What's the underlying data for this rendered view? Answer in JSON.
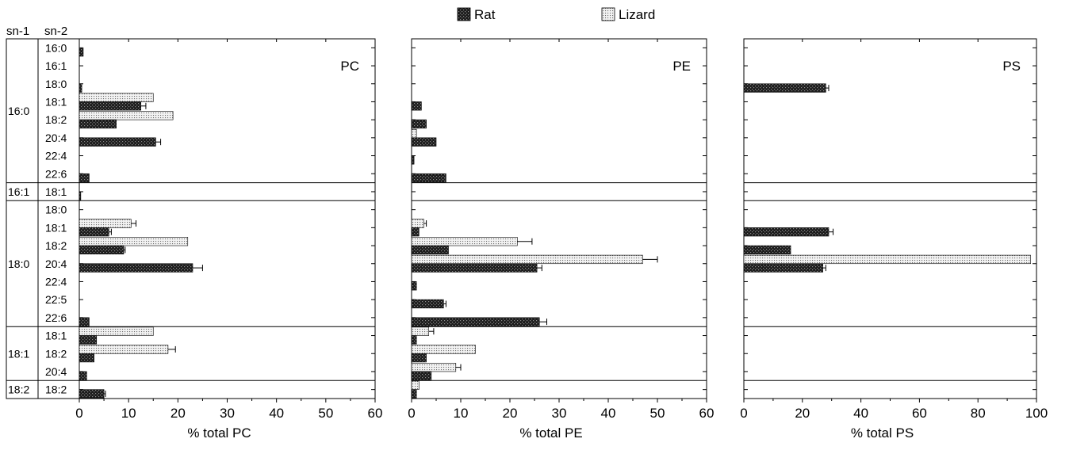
{
  "legend": [
    {
      "name": "Rat",
      "pattern": "dark-dotted"
    },
    {
      "name": "Lizard",
      "pattern": "light-dotted"
    }
  ],
  "row_headers": {
    "sn1": "sn-1",
    "sn2": "sn-2"
  },
  "groups": [
    {
      "sn1": "16:0",
      "sn2": [
        "16:0",
        "16:1",
        "18:0",
        "18:1",
        "18:2",
        "20:4",
        "22:4",
        "22:6"
      ]
    },
    {
      "sn1": "16:1",
      "sn2": [
        "18:1"
      ]
    },
    {
      "sn1": "18:0",
      "sn2": [
        "18:0",
        "18:1",
        "18:2",
        "20:4",
        "22:4",
        "22:5",
        "22:6"
      ]
    },
    {
      "sn1": "18:1",
      "sn2": [
        "18:1",
        "18:2",
        "20:4"
      ]
    },
    {
      "sn1": "18:2",
      "sn2": [
        "18:2"
      ]
    }
  ],
  "chart_data": [
    {
      "type": "bar",
      "title": "PC",
      "xlabel": "% total PC",
      "xlim": [
        0,
        60
      ],
      "ticks": [
        "0",
        "10",
        "20",
        "30",
        "40",
        "50",
        "60"
      ],
      "categories": [
        "16:0/16:0",
        "16:0/16:1",
        "16:0/18:0",
        "16:0/18:1",
        "16:0/18:2",
        "16:0/20:4",
        "16:0/22:4",
        "16:0/22:6",
        "16:1/18:1",
        "18:0/18:0",
        "18:0/18:1",
        "18:0/18:2",
        "18:0/20:4",
        "18:0/22:4",
        "18:0/22:5",
        "18:0/22:6",
        "18:1/18:1",
        "18:1/18:2",
        "18:1/20:4",
        "18:2/18:2"
      ],
      "series": [
        {
          "name": "Lizard",
          "values": [
            0,
            0,
            0,
            15,
            19,
            0,
            0,
            0,
            0,
            0,
            10.5,
            22,
            0,
            0,
            0,
            0,
            15,
            18,
            0,
            0
          ],
          "errors": [
            0,
            0,
            0,
            0,
            0,
            0,
            0,
            0,
            0,
            0,
            1,
            0,
            0,
            0,
            0,
            0,
            0,
            1.5,
            0,
            0
          ]
        },
        {
          "name": "Rat",
          "values": [
            0.8,
            0,
            0.5,
            12.5,
            7.5,
            15.5,
            0,
            2,
            0.3,
            0,
            6,
            9,
            23,
            0,
            0,
            2,
            3.5,
            3,
            1.5,
            5
          ],
          "errors": [
            0,
            0,
            0,
            1,
            0,
            1,
            0,
            0,
            0,
            0,
            0.5,
            0.3,
            2,
            0,
            0,
            0,
            0,
            0,
            0,
            0.3
          ]
        }
      ]
    },
    {
      "type": "bar",
      "title": "PE",
      "xlabel": "% total PE",
      "xlim": [
        0,
        60
      ],
      "ticks": [
        "0",
        "10",
        "20",
        "30",
        "40",
        "50",
        "60"
      ],
      "categories": [
        "16:0/16:0",
        "16:0/16:1",
        "16:0/18:0",
        "16:0/18:1",
        "16:0/18:2",
        "16:0/20:4",
        "16:0/22:4",
        "16:0/22:6",
        "16:1/18:1",
        "18:0/18:0",
        "18:0/18:1",
        "18:0/18:2",
        "18:0/20:4",
        "18:0/22:4",
        "18:0/22:5",
        "18:0/22:6",
        "18:1/18:1",
        "18:1/18:2",
        "18:1/20:4",
        "18:2/18:2"
      ],
      "series": [
        {
          "name": "Lizard",
          "values": [
            0,
            0,
            0,
            0,
            0,
            1,
            0,
            0,
            0,
            0,
            2.5,
            21.5,
            47,
            0,
            0,
            0,
            3.5,
            13,
            9,
            1.5
          ],
          "errors": [
            0,
            0,
            0,
            0,
            0,
            0,
            0,
            0,
            0,
            0,
            0.5,
            3,
            3,
            0,
            0,
            0,
            1,
            0,
            1,
            0
          ]
        },
        {
          "name": "Rat",
          "values": [
            0,
            0,
            0,
            2,
            3,
            5,
            0.5,
            7,
            0,
            0,
            1.5,
            7.5,
            25.5,
            1,
            6.5,
            26,
            1,
            3,
            4,
            1
          ],
          "errors": [
            0,
            0,
            0,
            0,
            0,
            0,
            0,
            0,
            0,
            0,
            0,
            0,
            1,
            0,
            0.5,
            1.5,
            0,
            0,
            0,
            0
          ]
        }
      ]
    },
    {
      "type": "bar",
      "title": "PS",
      "xlabel": "% total PS",
      "xlim": [
        0,
        100
      ],
      "ticks": [
        "0",
        "20",
        "40",
        "60",
        "80",
        "100"
      ],
      "categories": [
        "16:0/16:0",
        "16:0/16:1",
        "16:0/18:0",
        "16:0/18:1",
        "16:0/18:2",
        "16:0/20:4",
        "16:0/22:4",
        "16:0/22:6",
        "16:1/18:1",
        "18:0/18:0",
        "18:0/18:1",
        "18:0/18:2",
        "18:0/20:4",
        "18:0/22:4",
        "18:0/22:5",
        "18:0/22:6",
        "18:1/18:1",
        "18:1/18:2",
        "18:1/20:4",
        "18:2/18:2"
      ],
      "series": [
        {
          "name": "Lizard",
          "values": [
            0,
            0,
            0,
            0,
            0,
            0,
            0,
            0,
            0,
            0,
            0,
            0,
            98,
            0,
            0,
            0,
            0,
            0,
            0,
            0
          ],
          "errors": [
            0,
            0,
            0,
            0,
            0,
            0,
            0,
            0,
            0,
            0,
            0,
            0,
            0,
            0,
            0,
            0,
            0,
            0,
            0,
            0
          ]
        },
        {
          "name": "Rat",
          "values": [
            0,
            0,
            28,
            0,
            0,
            0,
            0,
            0,
            0,
            0,
            29,
            16,
            27,
            0,
            0,
            0,
            0,
            0,
            0,
            0
          ],
          "errors": [
            0,
            0,
            1,
            0,
            0,
            0,
            0,
            0,
            0,
            0,
            1.5,
            0,
            1,
            0,
            0,
            0,
            0,
            0,
            0,
            0
          ]
        }
      ]
    }
  ]
}
